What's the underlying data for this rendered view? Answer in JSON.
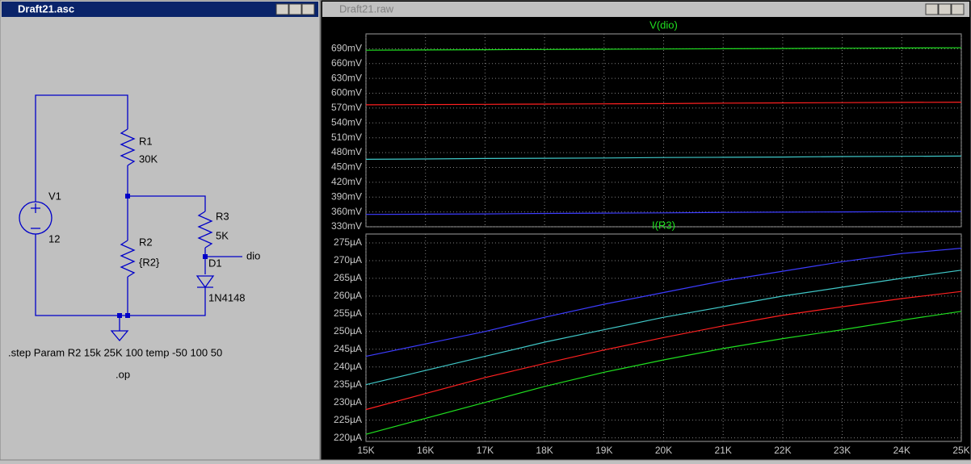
{
  "schematic": {
    "title": "Draft21.asc",
    "labels": [
      "V1",
      "12",
      "R1",
      "30K",
      "R2",
      "{R2}",
      "R3",
      "5K",
      "D1",
      "1N4148",
      "dio"
    ],
    "directives": [
      ".step Param R2 15k 25K 100  temp -50 100 50",
      ".op"
    ]
  },
  "waveform": {
    "title": "Draft21.raw"
  },
  "chart_data": [
    {
      "type": "line",
      "title": "V(dio)",
      "x": [
        15000,
        16000,
        17000,
        18000,
        19000,
        20000,
        21000,
        22000,
        23000,
        24000,
        25000
      ],
      "xlim": [
        15000,
        25000
      ],
      "ylim": [
        330,
        720
      ],
      "yticks": [
        {
          "value": 330,
          "label": "330mV"
        },
        {
          "value": 360,
          "label": "360mV"
        },
        {
          "value": 390,
          "label": "390mV"
        },
        {
          "value": 420,
          "label": "420mV"
        },
        {
          "value": 450,
          "label": "450mV"
        },
        {
          "value": 480,
          "label": "480mV"
        },
        {
          "value": 510,
          "label": "510mV"
        },
        {
          "value": 540,
          "label": "540mV"
        },
        {
          "value": 570,
          "label": "570mV"
        },
        {
          "value": 600,
          "label": "600mV"
        },
        {
          "value": 630,
          "label": "630mV"
        },
        {
          "value": 660,
          "label": "660mV"
        },
        {
          "value": 690,
          "label": "690mV"
        }
      ],
      "grid": true,
      "series": [
        {
          "color": "#3c3cff",
          "values": [
            355,
            355.5,
            356,
            357,
            357.5,
            358,
            359,
            359.5,
            360,
            360.5,
            361
          ]
        },
        {
          "color": "#40c8c8",
          "values": [
            466.5,
            467,
            468,
            468.5,
            469,
            470,
            470.5,
            471,
            472,
            472.5,
            473
          ]
        },
        {
          "color": "#ff2020",
          "values": [
            576.6,
            577,
            577.5,
            578,
            578.5,
            579,
            580,
            580.5,
            581,
            581.5,
            582
          ]
        },
        {
          "color": "#20e020",
          "values": [
            687,
            687.5,
            688,
            688.5,
            689,
            689.5,
            690,
            690.5,
            691,
            691.5,
            692
          ]
        }
      ]
    },
    {
      "type": "line",
      "title": "I(R3)",
      "x": [
        15000,
        16000,
        17000,
        18000,
        19000,
        20000,
        21000,
        22000,
        23000,
        24000,
        25000
      ],
      "xlim": [
        15000,
        25000
      ],
      "xticks": [
        {
          "value": 15000,
          "label": "15K"
        },
        {
          "value": 16000,
          "label": "16K"
        },
        {
          "value": 17000,
          "label": "17K"
        },
        {
          "value": 18000,
          "label": "18K"
        },
        {
          "value": 19000,
          "label": "19K"
        },
        {
          "value": 20000,
          "label": "20K"
        },
        {
          "value": 21000,
          "label": "21K"
        },
        {
          "value": 22000,
          "label": "22K"
        },
        {
          "value": 23000,
          "label": "23K"
        },
        {
          "value": 24000,
          "label": "24K"
        },
        {
          "value": 25000,
          "label": "25K"
        }
      ],
      "ylim": [
        219,
        277.5
      ],
      "yticks": [
        {
          "value": 220,
          "label": "220µA"
        },
        {
          "value": 225,
          "label": "225µA"
        },
        {
          "value": 230,
          "label": "230µA"
        },
        {
          "value": 235,
          "label": "235µA"
        },
        {
          "value": 240,
          "label": "240µA"
        },
        {
          "value": 245,
          "label": "245µA"
        },
        {
          "value": 250,
          "label": "250µA"
        },
        {
          "value": 255,
          "label": "255µA"
        },
        {
          "value": 260,
          "label": "260µA"
        },
        {
          "value": 265,
          "label": "265µA"
        },
        {
          "value": 270,
          "label": "270µA"
        },
        {
          "value": 275,
          "label": "275µA"
        }
      ],
      "grid": true,
      "series": [
        {
          "color": "#3c3cff",
          "values": [
            243,
            246.5,
            250,
            254,
            257.7,
            261,
            264.3,
            267,
            269.7,
            272,
            273.5
          ]
        },
        {
          "color": "#40c8c8",
          "values": [
            235,
            239,
            243,
            247,
            250.5,
            254,
            257,
            260,
            262.5,
            265,
            267.3
          ]
        },
        {
          "color": "#ff2020",
          "values": [
            228,
            232.5,
            237,
            241,
            244.8,
            248.3,
            251.6,
            254.6,
            257,
            259.3,
            261.3
          ]
        },
        {
          "color": "#20e020",
          "values": [
            221,
            225.5,
            230,
            234.5,
            238.5,
            242,
            245.2,
            248,
            250.5,
            253.2,
            255.7
          ]
        }
      ]
    }
  ]
}
